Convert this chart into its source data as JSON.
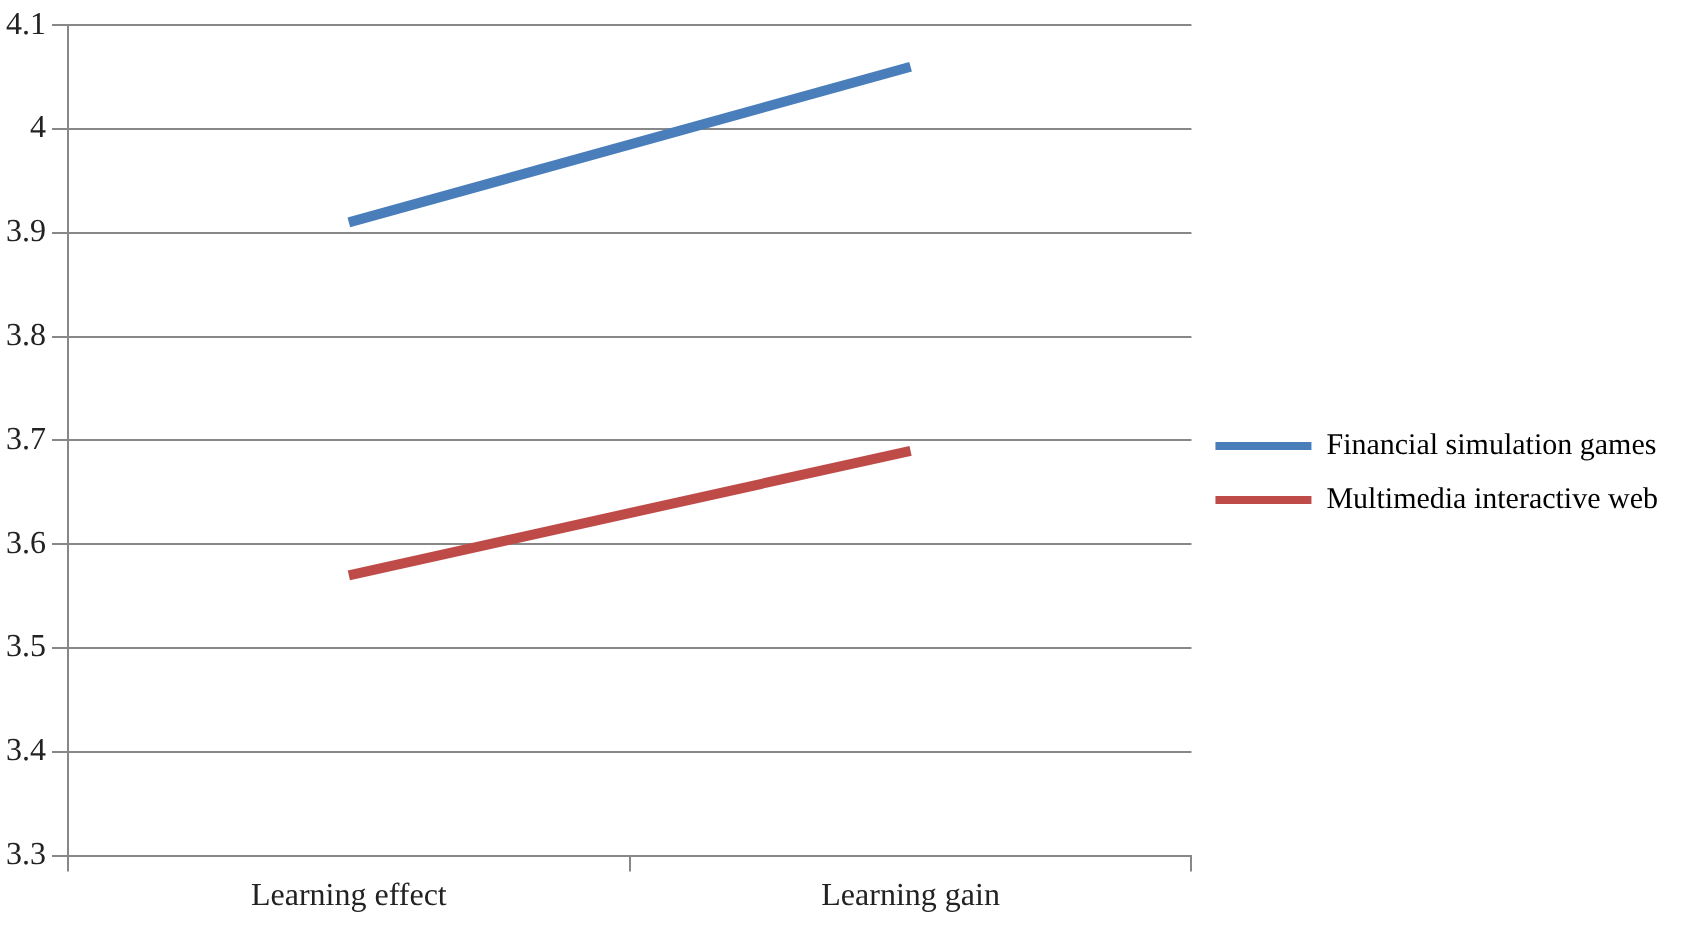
{
  "chart_data": {
    "type": "line",
    "categories": [
      "Learning effect",
      "Learning gain"
    ],
    "series": [
      {
        "name": "Financial simulation games",
        "color": "#4a7ebb",
        "values": [
          3.91,
          4.06
        ]
      },
      {
        "name": "Multimedia interactive web",
        "color": "#be4b48",
        "values": [
          3.57,
          3.69
        ]
      }
    ],
    "ylim": [
      3.3,
      4.1
    ],
    "yticks": [
      3.3,
      3.4,
      3.5,
      3.6,
      3.7,
      3.8,
      3.9,
      4,
      4.1
    ],
    "grid": "y",
    "legend": "right",
    "marker": "none",
    "line_style": "solid"
  }
}
